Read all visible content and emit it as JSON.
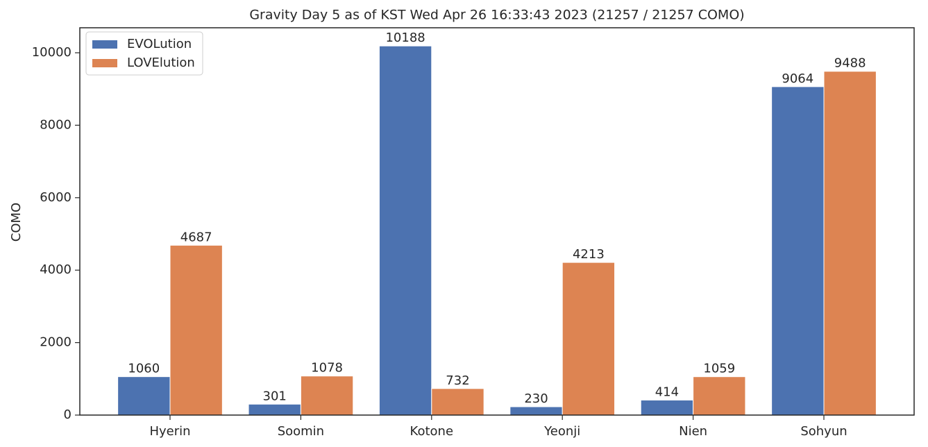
{
  "chart_data": {
    "type": "bar",
    "title": "Gravity Day 5 as of KST Wed Apr 26 16:33:43 2023 (21257 / 21257 COMO)",
    "y_label": "COMO",
    "categories": [
      "Hyerin",
      "Soomin",
      "Kotone",
      "Yeonji",
      "Nien",
      "Sohyun"
    ],
    "series": [
      {
        "name": "EVOLution",
        "color": "#4c72b0",
        "values": [
          1060,
          301,
          10188,
          230,
          414,
          9064
        ]
      },
      {
        "name": "LOVElution",
        "color": "#dd8452",
        "values": [
          4687,
          1078,
          732,
          4213,
          1059,
          9488
        ]
      }
    ],
    "ylim": [
      0,
      10690
    ],
    "yticks": [
      0,
      2000,
      4000,
      6000,
      8000,
      10000
    ],
    "legend": "upper left",
    "show_values": true
  }
}
